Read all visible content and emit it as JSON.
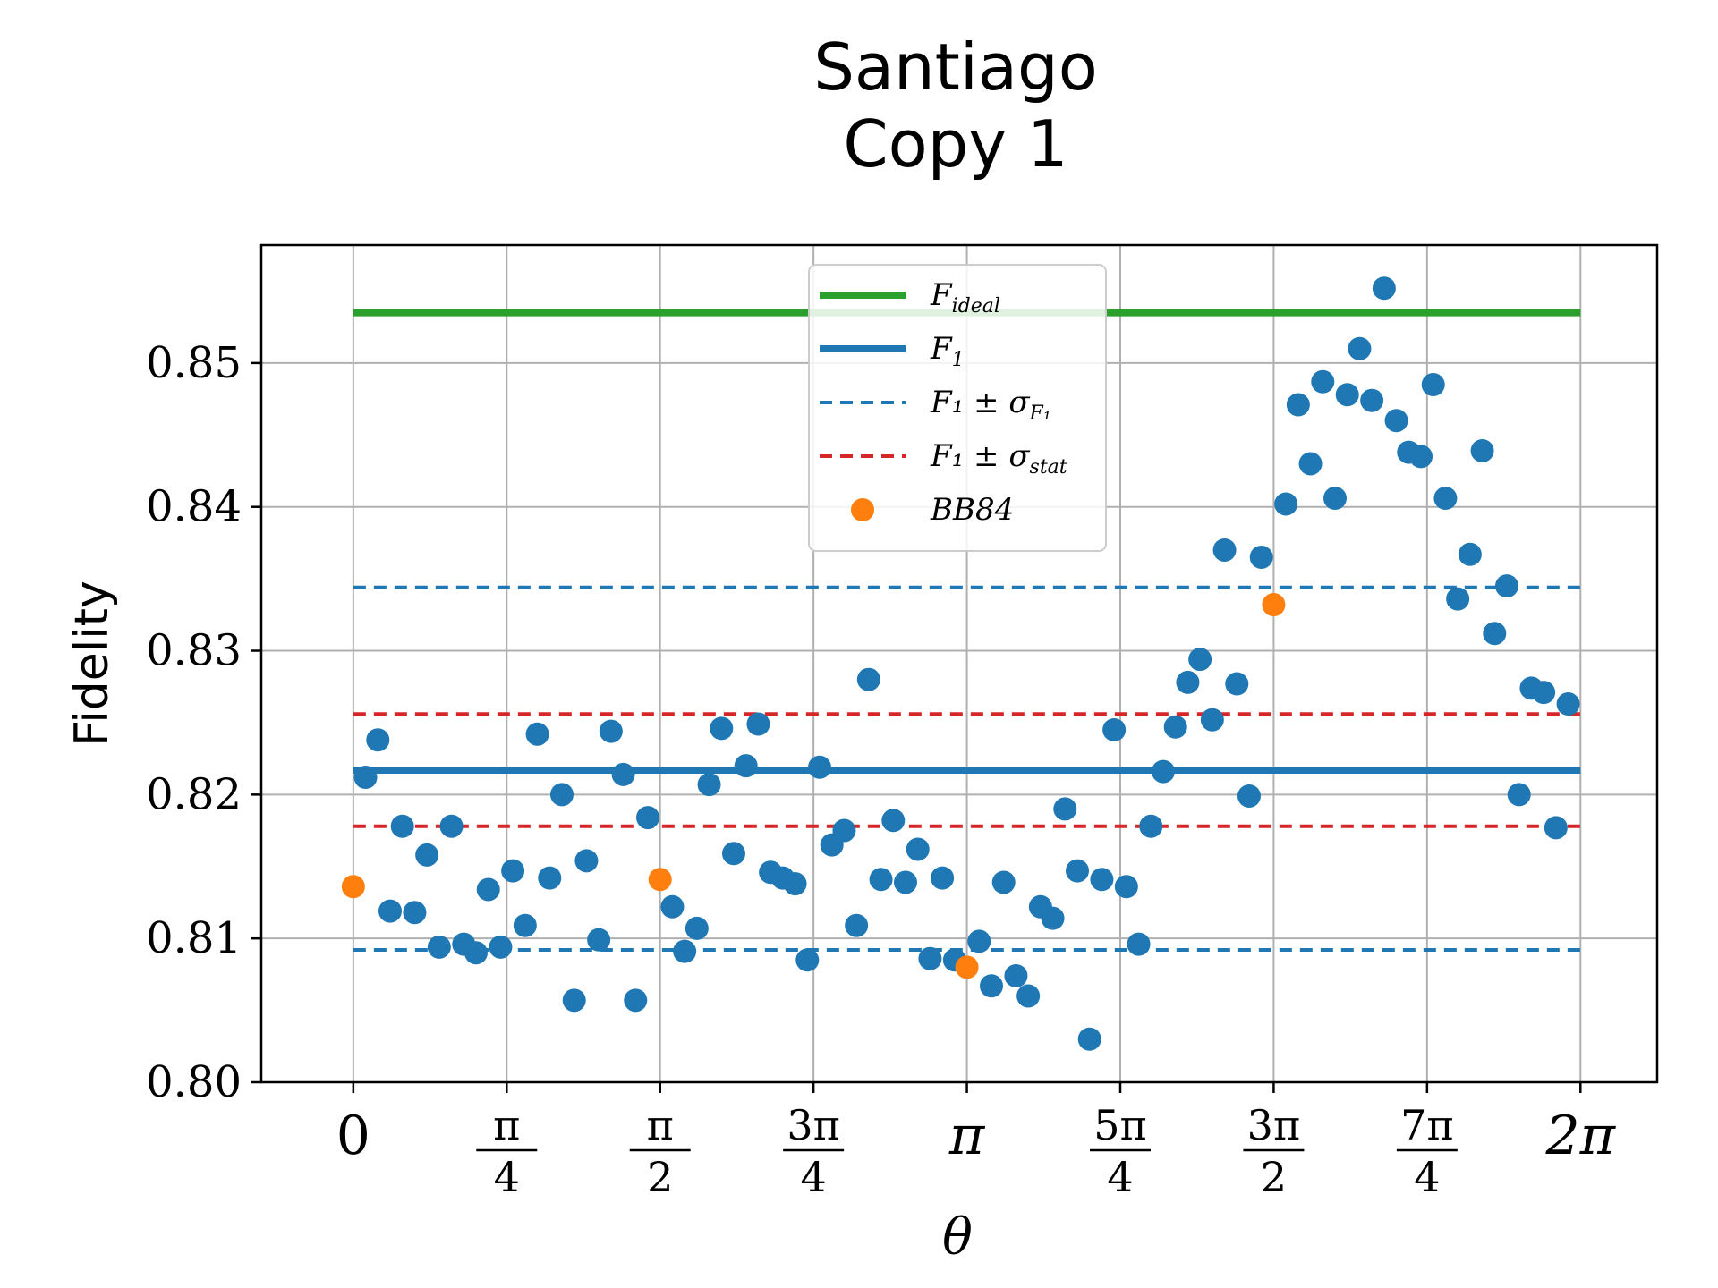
{
  "chart_data": {
    "type": "scatter",
    "title": [
      "Santiago",
      "Copy 1"
    ],
    "xlabel": "θ",
    "ylabel": "Fidelity",
    "xlim": [
      -0.4712,
      6.6759
    ],
    "ylim": [
      0.8,
      0.8582
    ],
    "grid": true,
    "legend_position": "top-center",
    "yticks": [
      {
        "value": 0.8,
        "label": "0.80"
      },
      {
        "value": 0.81,
        "label": "0.81"
      },
      {
        "value": 0.82,
        "label": "0.82"
      },
      {
        "value": 0.83,
        "label": "0.83"
      },
      {
        "value": 0.84,
        "label": "0.84"
      },
      {
        "value": 0.85,
        "label": "0.85"
      }
    ],
    "xticks": [
      {
        "value": 0,
        "kind": "single",
        "text": "0"
      },
      {
        "value": 0.7854,
        "kind": "frac",
        "num": "π",
        "den": "4"
      },
      {
        "value": 1.5708,
        "kind": "frac",
        "num": "π",
        "den": "2"
      },
      {
        "value": 2.3562,
        "kind": "frac",
        "num": "3π",
        "den": "4"
      },
      {
        "value": 3.1416,
        "kind": "single",
        "text": "π"
      },
      {
        "value": 3.927,
        "kind": "frac",
        "num": "5π",
        "den": "4"
      },
      {
        "value": 4.7124,
        "kind": "frac",
        "num": "3π",
        "den": "2"
      },
      {
        "value": 5.4978,
        "kind": "frac",
        "num": "7π",
        "den": "4"
      },
      {
        "value": 6.2832,
        "kind": "single",
        "text": "2π"
      }
    ],
    "colors": {
      "ideal": "#2ca02c",
      "f1": "#1f77b4",
      "stat": "#d62728",
      "bb84": "#ff7f0e",
      "grid": "#b0b0b0"
    },
    "lines": [
      {
        "name": "F_ideal",
        "y": 0.8535,
        "x": [
          0,
          6.2832
        ],
        "color": "#2ca02c",
        "style": "solid"
      },
      {
        "name": "F_1",
        "y": 0.8217,
        "x": [
          0,
          6.2832
        ],
        "color": "#1f77b4",
        "style": "solid"
      },
      {
        "name": "F_1 ± σ_F1 (upper)",
        "y": 0.8344,
        "x": [
          0,
          6.2832
        ],
        "color": "#1f77b4",
        "style": "dashed"
      },
      {
        "name": "F_1 ± σ_F1 (lower)",
        "y": 0.8092,
        "x": [
          0,
          6.2832
        ],
        "color": "#1f77b4",
        "style": "dashed"
      },
      {
        "name": "F_1 ± σ_stat (upper)",
        "y": 0.8256,
        "x": [
          0,
          6.2832
        ],
        "color": "#d62728",
        "style": "dashed"
      },
      {
        "name": "F_1 ± σ_stat (lower)",
        "y": 0.8178,
        "x": [
          0,
          6.2832
        ],
        "color": "#d62728",
        "style": "dashed"
      }
    ],
    "legend": [
      {
        "main": "F",
        "sub": "ideal",
        "symbol": "line",
        "color": "#2ca02c",
        "style": "solid"
      },
      {
        "main": "F",
        "sub": "1",
        "symbol": "line",
        "color": "#1f77b4",
        "style": "solid"
      },
      {
        "main": "F₁ ± σ",
        "sub": "F₁",
        "symbol": "line",
        "color": "#1f77b4",
        "style": "dashed"
      },
      {
        "main": "F₁ ± σ",
        "sub": "stat",
        "symbol": "line",
        "color": "#d62728",
        "style": "dashed"
      },
      {
        "main": "BB84",
        "sub": "",
        "symbol": "dot",
        "color": "#ff7f0e",
        "style": "none"
      }
    ],
    "series": [
      {
        "name": "data",
        "color": "#1f77b4",
        "points": [
          [
            0.0628,
            0.8212
          ],
          [
            0.1257,
            0.8238
          ],
          [
            0.1885,
            0.8119
          ],
          [
            0.2513,
            0.8178
          ],
          [
            0.3142,
            0.8118
          ],
          [
            0.377,
            0.8158
          ],
          [
            0.4398,
            0.8094
          ],
          [
            0.5027,
            0.8178
          ],
          [
            0.5655,
            0.8096
          ],
          [
            0.6283,
            0.809
          ],
          [
            0.6912,
            0.8134
          ],
          [
            0.754,
            0.8094
          ],
          [
            0.8168,
            0.8147
          ],
          [
            0.8796,
            0.8109
          ],
          [
            0.9425,
            0.8242
          ],
          [
            1.0053,
            0.8142
          ],
          [
            1.0681,
            0.82
          ],
          [
            1.131,
            0.8057
          ],
          [
            1.1938,
            0.8154
          ],
          [
            1.2566,
            0.8099
          ],
          [
            1.3195,
            0.8244
          ],
          [
            1.3823,
            0.8214
          ],
          [
            1.4451,
            0.8057
          ],
          [
            1.508,
            0.8184
          ],
          [
            1.6336,
            0.8122
          ],
          [
            1.6965,
            0.8091
          ],
          [
            1.7593,
            0.8107
          ],
          [
            1.8221,
            0.8207
          ],
          [
            1.885,
            0.8246
          ],
          [
            1.9478,
            0.8159
          ],
          [
            2.0106,
            0.822
          ],
          [
            2.0735,
            0.8249
          ],
          [
            2.1363,
            0.8146
          ],
          [
            2.1991,
            0.8142
          ],
          [
            2.2619,
            0.8138
          ],
          [
            2.3248,
            0.8085
          ],
          [
            2.3876,
            0.8219
          ],
          [
            2.4504,
            0.8165
          ],
          [
            2.5133,
            0.8175
          ],
          [
            2.5761,
            0.8109
          ],
          [
            2.6389,
            0.828
          ],
          [
            2.7018,
            0.8141
          ],
          [
            2.7646,
            0.8182
          ],
          [
            2.8274,
            0.8139
          ],
          [
            2.8903,
            0.8162
          ],
          [
            2.9531,
            0.8086
          ],
          [
            3.0159,
            0.8142
          ],
          [
            3.0788,
            0.8085
          ],
          [
            3.2044,
            0.8098
          ],
          [
            3.2673,
            0.8067
          ],
          [
            3.3301,
            0.8139
          ],
          [
            3.3929,
            0.8074
          ],
          [
            3.4558,
            0.806
          ],
          [
            3.5186,
            0.8122
          ],
          [
            3.5814,
            0.8114
          ],
          [
            3.6442,
            0.819
          ],
          [
            3.7071,
            0.8147
          ],
          [
            3.7699,
            0.803
          ],
          [
            3.8327,
            0.8141
          ],
          [
            3.8956,
            0.8245
          ],
          [
            3.9584,
            0.8136
          ],
          [
            4.0212,
            0.8096
          ],
          [
            4.0841,
            0.8178
          ],
          [
            4.1469,
            0.8216
          ],
          [
            4.2097,
            0.8247
          ],
          [
            4.2726,
            0.8278
          ],
          [
            4.3354,
            0.8294
          ],
          [
            4.3982,
            0.8252
          ],
          [
            4.4611,
            0.837
          ],
          [
            4.5239,
            0.8277
          ],
          [
            4.5867,
            0.8199
          ],
          [
            4.6496,
            0.8365
          ],
          [
            4.7752,
            0.8402
          ],
          [
            4.8381,
            0.8471
          ],
          [
            4.9009,
            0.843
          ],
          [
            4.9637,
            0.8487
          ],
          [
            5.0265,
            0.8406
          ],
          [
            5.0894,
            0.8478
          ],
          [
            5.1522,
            0.851
          ],
          [
            5.215,
            0.8474
          ],
          [
            5.2779,
            0.8552
          ],
          [
            5.3407,
            0.846
          ],
          [
            5.4035,
            0.8438
          ],
          [
            5.4664,
            0.8435
          ],
          [
            5.5292,
            0.8485
          ],
          [
            5.592,
            0.8406
          ],
          [
            5.6549,
            0.8336
          ],
          [
            5.7177,
            0.8367
          ],
          [
            5.7805,
            0.8439
          ],
          [
            5.8434,
            0.8312
          ],
          [
            5.9062,
            0.8345
          ],
          [
            5.969,
            0.82
          ],
          [
            6.0319,
            0.8274
          ],
          [
            6.0947,
            0.8271
          ],
          [
            6.1575,
            0.8177
          ],
          [
            6.2204,
            0.8263
          ]
        ]
      },
      {
        "name": "BB84",
        "color": "#ff7f0e",
        "points": [
          [
            0.0,
            0.8136
          ],
          [
            1.5708,
            0.8141
          ],
          [
            3.1416,
            0.808
          ],
          [
            4.7124,
            0.8332
          ]
        ]
      }
    ]
  }
}
